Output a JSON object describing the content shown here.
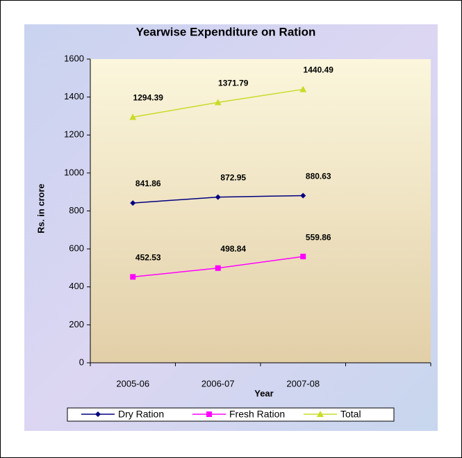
{
  "chart_data": {
    "type": "line",
    "title": "Yearwise Expenditure on Ration",
    "x_label": "Year",
    "y_label": "Rs. in crore",
    "categories": [
      "2005-06",
      "2006-07",
      "2007-08",
      null
    ],
    "series": [
      {
        "name": "Dry Ration",
        "color": "#000080",
        "marker": "diamond",
        "values": [
          841.86,
          872.95,
          880.63,
          null
        ]
      },
      {
        "name": "Fresh Ration",
        "color": "#ff00ff",
        "marker": "square",
        "values": [
          452.53,
          498.84,
          559.86,
          null
        ]
      },
      {
        "name": "Total",
        "color": "#c8dc28",
        "marker": "triangle",
        "values": [
          1294.39,
          1371.79,
          1440.49,
          null
        ]
      }
    ],
    "ylim": [
      0,
      1600
    ],
    "yticks": [
      0,
      200,
      400,
      600,
      800,
      1000,
      1200,
      1400,
      1600
    ],
    "grid": false,
    "legend": "bottom"
  }
}
